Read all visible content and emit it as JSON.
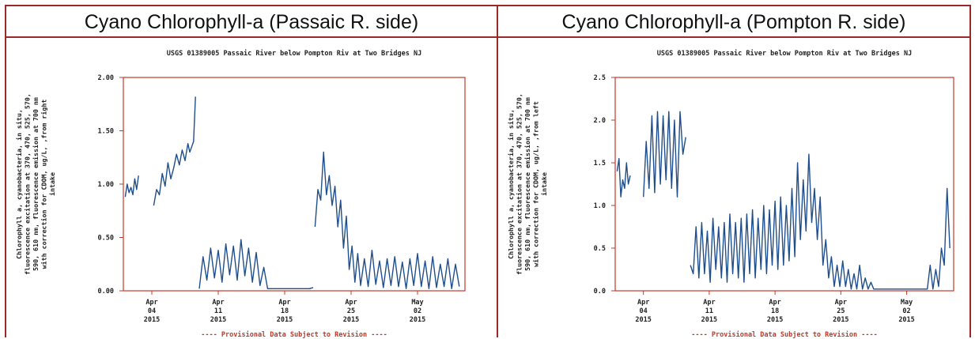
{
  "panels": [
    {
      "title": "Cyano Chlorophyll-a (Passaic R. side)",
      "chart_data": {
        "type": "line",
        "title": "USGS 01389005 Passaic River below Pompton Riv at Two Bridges NJ",
        "ylabel": "Chlorophyll a, cyanobacteria, in situ, fluorescence excitation at 370, 470, 525, 570, 590, 610 nm, fluorescence emission at 700 nm with correction for CDOM, ug/L, ,from right intake",
        "yticks": [
          "0.00",
          "0.50",
          "1.00",
          "1.50",
          "2.00"
        ],
        "ylim": [
          0,
          2.0
        ],
        "xticks": [
          {
            "label": [
              "Apr",
              "04",
              "2015"
            ],
            "day": 4
          },
          {
            "label": [
              "Apr",
              "11",
              "2015"
            ],
            "day": 11
          },
          {
            "label": [
              "Apr",
              "18",
              "2015"
            ],
            "day": 18
          },
          {
            "label": [
              "Apr",
              "25",
              "2015"
            ],
            "day": 25
          },
          {
            "label": [
              "May",
              "02",
              "2015"
            ],
            "day": 32
          }
        ],
        "xlim": [
          1,
          37
        ],
        "footer": "---- Provisional Data Subject to Revision ----",
        "series": [
          {
            "segments": [
              {
                "x": [
                  1.2,
                  1.4,
                  1.6,
                  1.8,
                  2.0,
                  2.2,
                  2.4,
                  2.6
                ],
                "y": [
                  0.88,
                  1.0,
                  0.92,
                  0.97,
                  0.9,
                  1.05,
                  0.95,
                  1.08
                ]
              },
              {
                "x": [
                  4.2,
                  4.5,
                  4.8,
                  5.1,
                  5.4,
                  5.7,
                  6.0,
                  6.3,
                  6.6,
                  6.9,
                  7.2,
                  7.5,
                  7.8,
                  8.0,
                  8.2,
                  8.4,
                  8.6
                ],
                "y": [
                  0.8,
                  0.95,
                  0.9,
                  1.1,
                  0.98,
                  1.2,
                  1.05,
                  1.15,
                  1.28,
                  1.18,
                  1.32,
                  1.22,
                  1.38,
                  1.3,
                  1.35,
                  1.4,
                  1.82
                ]
              },
              {
                "x": [
                  9.0,
                  9.4,
                  9.8,
                  10.2,
                  10.6,
                  11.0,
                  11.4,
                  11.8,
                  12.2,
                  12.6,
                  13.0,
                  13.4,
                  13.8,
                  14.2,
                  14.6,
                  15.0,
                  15.4,
                  15.8,
                  16.2,
                  16.6,
                  17.0,
                  17.4,
                  17.8,
                  18.2,
                  18.6,
                  19.0,
                  19.4,
                  19.8,
                  20.2,
                  20.6,
                  21.0
                ],
                "y": [
                  0.02,
                  0.32,
                  0.1,
                  0.4,
                  0.12,
                  0.38,
                  0.08,
                  0.44,
                  0.15,
                  0.42,
                  0.1,
                  0.48,
                  0.14,
                  0.4,
                  0.08,
                  0.36,
                  0.05,
                  0.22,
                  0.02,
                  0.02,
                  0.02,
                  0.02,
                  0.02,
                  0.02,
                  0.02,
                  0.02,
                  0.02,
                  0.02,
                  0.02,
                  0.02,
                  0.03
                ]
              },
              {
                "x": [
                  21.2,
                  21.5,
                  21.8,
                  22.1,
                  22.4,
                  22.7,
                  23.0,
                  23.3,
                  23.6,
                  23.9,
                  24.2,
                  24.5,
                  24.8,
                  25.1,
                  25.4,
                  25.7,
                  26.0,
                  26.4,
                  26.8,
                  27.2,
                  27.6,
                  28.0,
                  28.4,
                  28.8,
                  29.2,
                  29.6,
                  30.0,
                  30.4,
                  30.8,
                  31.2,
                  31.6,
                  32.0,
                  32.4,
                  32.8,
                  33.2,
                  33.6,
                  34.0,
                  34.4,
                  34.8,
                  35.2,
                  35.6,
                  36.0,
                  36.4
                ],
                "y": [
                  0.6,
                  0.95,
                  0.85,
                  1.3,
                  0.9,
                  1.08,
                  0.8,
                  0.98,
                  0.6,
                  0.85,
                  0.4,
                  0.7,
                  0.2,
                  0.42,
                  0.08,
                  0.35,
                  0.05,
                  0.3,
                  0.04,
                  0.38,
                  0.06,
                  0.28,
                  0.03,
                  0.3,
                  0.05,
                  0.32,
                  0.04,
                  0.27,
                  0.02,
                  0.3,
                  0.05,
                  0.35,
                  0.04,
                  0.28,
                  0.02,
                  0.32,
                  0.03,
                  0.25,
                  0.04,
                  0.3,
                  0.02,
                  0.25,
                  0.04
                ]
              }
            ]
          }
        ]
      }
    },
    {
      "title": "Cyano Chlorophyll-a (Pompton R. side)",
      "chart_data": {
        "type": "line",
        "title": "USGS 01389005 Passaic River below Pompton Riv at Two Bridges NJ",
        "ylabel": "Chlorophyll a, cyanobacteria, in situ, fluorescence excitation at 370, 470, 525, 570, 590, 610 nm, fluorescence emission at 700 nm with correction for CDOM, ug/L, ,from left intake",
        "yticks": [
          "0.0",
          "0.5",
          "1.0",
          "1.5",
          "2.0",
          "2.5"
        ],
        "ylim": [
          0,
          2.5
        ],
        "xticks": [
          {
            "label": [
              "Apr",
              "04",
              "2015"
            ],
            "day": 4
          },
          {
            "label": [
              "Apr",
              "11",
              "2015"
            ],
            "day": 11
          },
          {
            "label": [
              "Apr",
              "18",
              "2015"
            ],
            "day": 18
          },
          {
            "label": [
              "Apr",
              "25",
              "2015"
            ],
            "day": 25
          },
          {
            "label": [
              "May",
              "02",
              "2015"
            ],
            "day": 32
          }
        ],
        "xlim": [
          1,
          37
        ],
        "footer": "---- Provisional Data Subject to Revision ----",
        "series": [
          {
            "segments": [
              {
                "x": [
                  1.2,
                  1.4,
                  1.6,
                  1.8,
                  2.0,
                  2.2,
                  2.4,
                  2.6
                ],
                "y": [
                  1.4,
                  1.55,
                  1.1,
                  1.3,
                  1.2,
                  1.5,
                  1.25,
                  1.35
                ]
              },
              {
                "x": [
                  4.0,
                  4.3,
                  4.6,
                  4.9,
                  5.2,
                  5.5,
                  5.8,
                  6.1,
                  6.4,
                  6.7,
                  7.0,
                  7.3,
                  7.6,
                  7.9,
                  8.2,
                  8.5
                ],
                "y": [
                  1.1,
                  1.75,
                  1.2,
                  2.05,
                  1.15,
                  2.1,
                  1.25,
                  2.05,
                  1.3,
                  2.1,
                  1.2,
                  2.0,
                  1.1,
                  2.1,
                  1.6,
                  1.8
                ]
              },
              {
                "x": [
                  9.0,
                  9.3,
                  9.6,
                  9.9,
                  10.2,
                  10.5,
                  10.8,
                  11.1,
                  11.4,
                  11.7,
                  12.0,
                  12.3,
                  12.6,
                  12.9,
                  13.2,
                  13.5,
                  13.8,
                  14.1,
                  14.4,
                  14.7,
                  15.0,
                  15.3,
                  15.6,
                  15.9,
                  16.2,
                  16.5,
                  16.8,
                  17.1,
                  17.4,
                  17.7,
                  18.0,
                  18.3,
                  18.6,
                  18.9,
                  19.2,
                  19.5,
                  19.8,
                  20.1,
                  20.4,
                  20.7,
                  21.0,
                  21.3,
                  21.6,
                  21.9,
                  22.2,
                  22.5,
                  22.8,
                  23.1,
                  23.4,
                  23.7,
                  24.0,
                  24.3,
                  24.6,
                  24.9,
                  25.2,
                  25.5,
                  25.8,
                  26.1,
                  26.4,
                  26.7,
                  27.0,
                  27.3,
                  27.6,
                  27.9,
                  28.2,
                  28.5,
                  28.8,
                  29.1,
                  29.4,
                  29.7,
                  30.0,
                  30.3,
                  30.6,
                  30.9,
                  31.2,
                  31.5,
                  31.8,
                  32.1,
                  32.4,
                  32.7,
                  33.0,
                  33.3,
                  33.6,
                  33.9,
                  34.2,
                  34.5,
                  34.8,
                  35.1,
                  35.4,
                  35.7,
                  36.0,
                  36.3,
                  36.6
                ],
                "y": [
                  0.3,
                  0.2,
                  0.75,
                  0.15,
                  0.8,
                  0.2,
                  0.7,
                  0.1,
                  0.85,
                  0.25,
                  0.75,
                  0.15,
                  0.8,
                  0.1,
                  0.9,
                  0.2,
                  0.8,
                  0.15,
                  0.85,
                  0.1,
                  0.9,
                  0.2,
                  0.95,
                  0.15,
                  0.85,
                  0.25,
                  1.0,
                  0.2,
                  0.95,
                  0.3,
                  1.05,
                  0.25,
                  1.1,
                  0.3,
                  1.0,
                  0.35,
                  1.2,
                  0.4,
                  1.5,
                  0.6,
                  1.3,
                  0.7,
                  1.6,
                  0.8,
                  1.2,
                  0.6,
                  1.1,
                  0.3,
                  0.6,
                  0.15,
                  0.4,
                  0.05,
                  0.3,
                  0.05,
                  0.35,
                  0.05,
                  0.25,
                  0.02,
                  0.2,
                  0.02,
                  0.3,
                  0.02,
                  0.15,
                  0.02,
                  0.1,
                  0.02,
                  0.02,
                  0.02,
                  0.02,
                  0.02,
                  0.02,
                  0.02,
                  0.02,
                  0.02,
                  0.02,
                  0.02,
                  0.02,
                  0.02,
                  0.02,
                  0.02,
                  0.02,
                  0.02,
                  0.02,
                  0.02,
                  0.02,
                  0.3,
                  0.02,
                  0.25,
                  0.05,
                  0.5,
                  0.3,
                  1.2,
                  0.5
                ]
              }
            ]
          }
        ]
      }
    }
  ]
}
